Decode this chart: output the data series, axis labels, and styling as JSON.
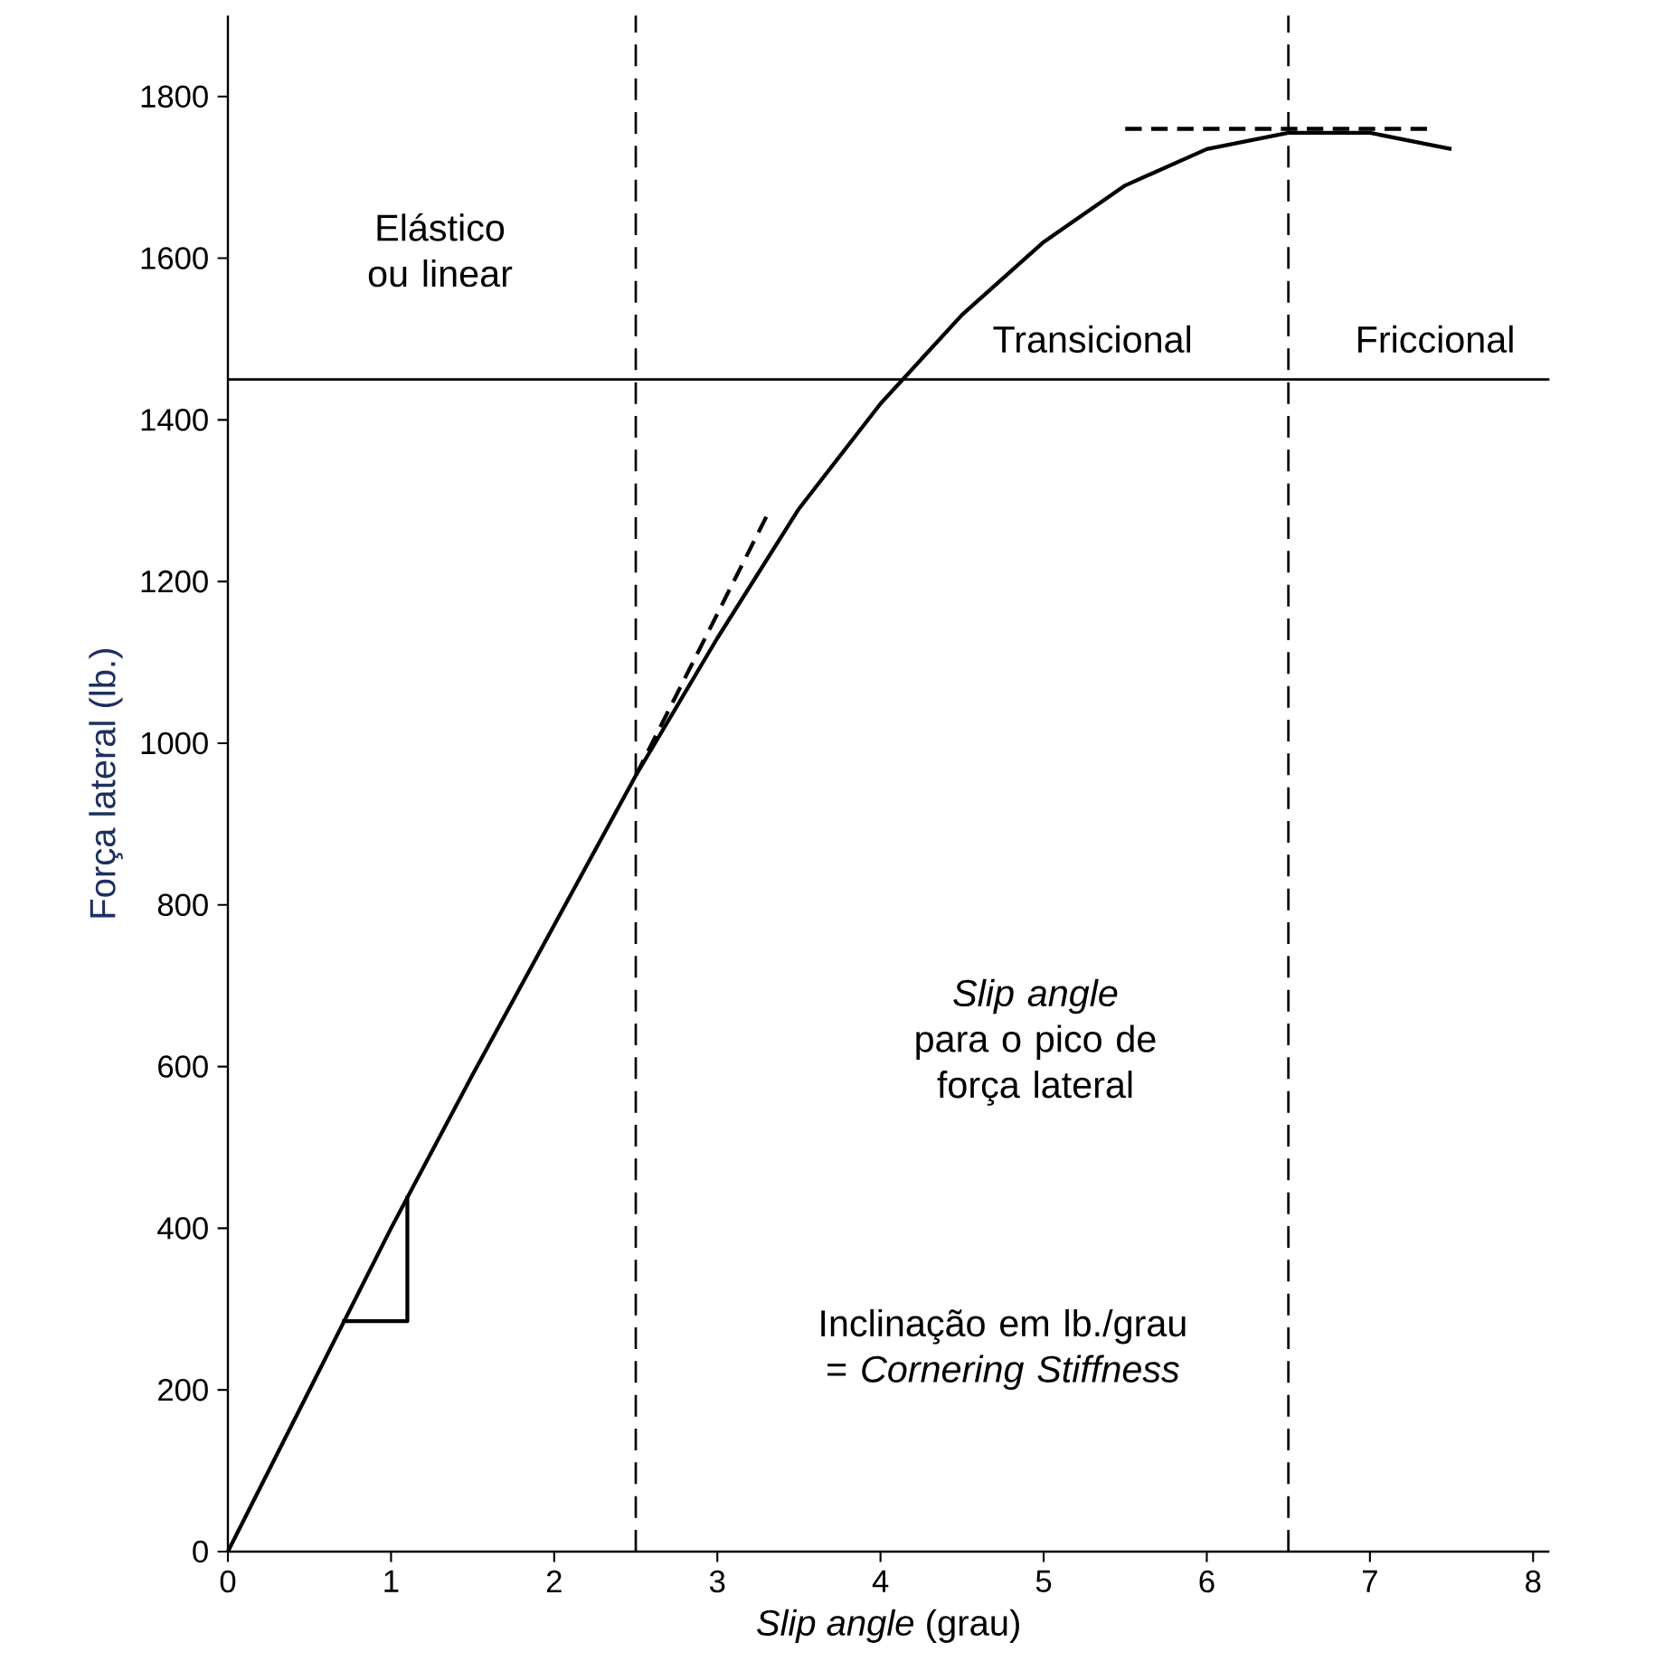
{
  "chart_data": {
    "type": "line",
    "xlabel": "*Slip angle* (grau)",
    "ylabel": "Força lateral (lb.)",
    "xlim": [
      0,
      8.1
    ],
    "ylim": [
      0,
      1900
    ],
    "xticks": [
      0,
      1,
      2,
      3,
      4,
      5,
      6,
      7,
      8
    ],
    "yticks": [
      0,
      200,
      400,
      600,
      800,
      1000,
      1200,
      1400,
      1600,
      1800
    ],
    "line_style": "solid",
    "series": [
      {
        "color": "#000000",
        "x": [
          0,
          0.5,
          1,
          1.5,
          2,
          2.5,
          3,
          3.5,
          4,
          4.5,
          5,
          5.5,
          6,
          6.5,
          7,
          7.5
        ],
        "values": [
          0,
          200,
          400,
          590,
          775,
          960,
          1130,
          1290,
          1420,
          1530,
          1620,
          1690,
          1735,
          1755,
          1755,
          1735
        ]
      },
      {
        "color": "#000000",
        "line_style": "dashed",
        "x": [
          2.5,
          3.3
        ],
        "values": [
          960,
          1280
        ]
      },
      {
        "color": "#000000",
        "line_style": "dashed",
        "x": [
          5.5,
          7.35
        ],
        "values": [
          1760,
          1760
        ]
      },
      {
        "color": "#000000",
        "x": [
          0.7,
          1.1,
          1.1
        ],
        "values": [
          285,
          285,
          440
        ]
      }
    ],
    "ref_lines": [
      {
        "axis": "x",
        "value": 2.5,
        "line_style": "dashed"
      },
      {
        "axis": "x",
        "value": 6.5,
        "line_style": "dashed"
      },
      {
        "axis": "y",
        "value": 1450
      }
    ],
    "annotations": [
      "Elástico ou linear",
      "Transicional",
      "Friccional",
      "*Slip angle* para o pico de força lateral",
      "Inclinação em lb./grau = *Cornering Stiffness*"
    ]
  }
}
